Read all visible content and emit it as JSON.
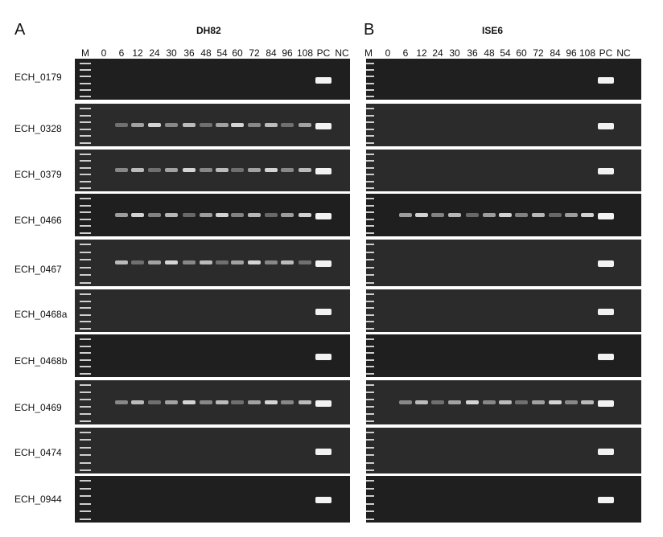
{
  "panels": [
    {
      "letter": "A",
      "cell_line": "DH82"
    },
    {
      "letter": "B",
      "cell_line": "ISE6"
    }
  ],
  "lane_labels": [
    "M",
    "0",
    "6",
    "12",
    "24",
    "30",
    "36",
    "48",
    "54",
    "60",
    "72",
    "84",
    "96",
    "108",
    "PC",
    "NC"
  ],
  "rows": [
    "ECH_0179",
    "ECH_0328",
    "ECH_0379",
    "ECH_0466",
    "ECH_0467",
    "ECH_0468a",
    "ECH_0468b",
    "ECH_0469",
    "ECH_0474",
    "ECH_0944"
  ]
}
